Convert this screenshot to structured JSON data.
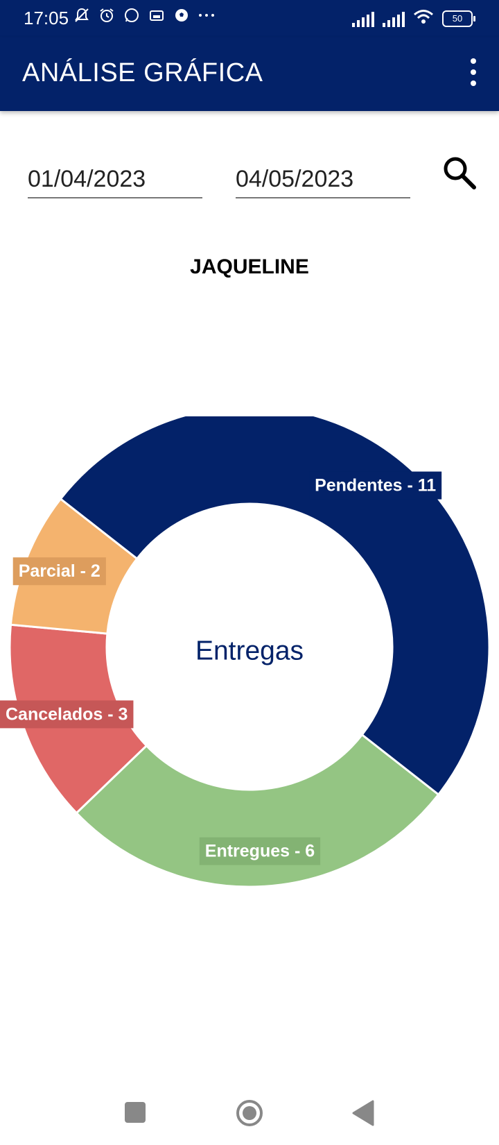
{
  "status_bar": {
    "time": "17:05",
    "battery": "50",
    "left_icons": [
      "bell-off-icon",
      "alarm-icon",
      "whatsapp-icon",
      "sim-card-icon",
      "soccer-ball-icon",
      "more-notifications-icon"
    ],
    "right_icons": [
      "signal-1-icon",
      "signal-2-icon",
      "wifi-icon",
      "battery-icon"
    ]
  },
  "app_bar": {
    "title": "ANÁLISE GRÁFICA",
    "menu_icon": "more-vert-icon"
  },
  "filters": {
    "start_date": "01/04/2023",
    "end_date": "04/05/2023",
    "search_icon": "search-icon"
  },
  "person_name": "JAQUELINE",
  "chart_data": {
    "type": "pie",
    "donut": true,
    "center_label": "Entregas",
    "slices": [
      {
        "name": "Pendentes",
        "value": 11,
        "label": "Pendentes - 11",
        "color": "#032269",
        "label_bg": "#032269"
      },
      {
        "name": "Entregues",
        "value": 6,
        "label": "Entregues - 6",
        "color": "#94c583",
        "label_bg": "#83b373"
      },
      {
        "name": "Cancelados",
        "value": 3,
        "label": "Cancelados - 3",
        "color": "#e06766",
        "label_bg": "#c65757"
      },
      {
        "name": "Parcial",
        "value": 2,
        "label": "Parcial - 2",
        "color": "#f4b36e",
        "label_bg": "#dd9d5d"
      }
    ]
  },
  "nav_bar": {
    "recent_icon": "recent-apps-icon",
    "home_icon": "home-icon",
    "back_icon": "back-icon"
  }
}
